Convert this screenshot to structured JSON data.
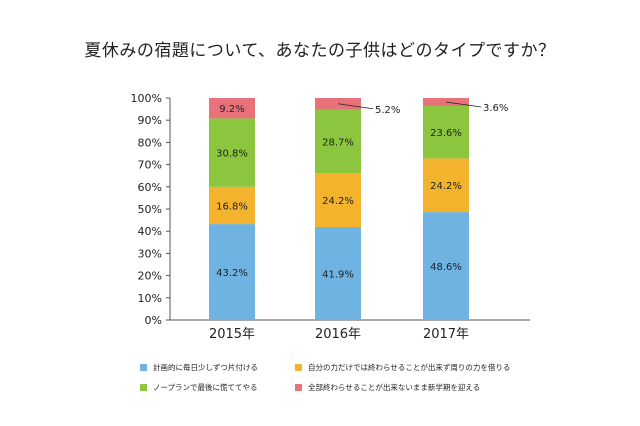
{
  "chart_data": {
    "type": "bar",
    "stacked": true,
    "title": "夏休みの宿題について、あなたの子供はどのタイプですか？",
    "categories": [
      "2015年",
      "2016年",
      "2017年"
    ],
    "ylim": [
      0,
      100
    ],
    "yticks": [
      "0%",
      "10%",
      "20%",
      "30%",
      "40%",
      "50%",
      "60%",
      "70%",
      "80%",
      "90%",
      "100%"
    ],
    "grid": false,
    "legend_position": "bottom",
    "series": [
      {
        "name": "計画的に毎日少しずつ片付ける",
        "color": "#6fb3e2",
        "values": [
          43.2,
          41.9,
          48.6
        ],
        "labels": [
          "43.2%",
          "41.9%",
          "48.6%"
        ]
      },
      {
        "name": "自分の力だけでは終わらせることが出来ず周りの力を借りる",
        "color": "#f4b32c",
        "values": [
          16.8,
          24.2,
          24.2
        ],
        "labels": [
          "16.8%",
          "24.2%",
          "24.2%"
        ]
      },
      {
        "name": "ノープランで最後に慌ててやる",
        "color": "#8cc63e",
        "values": [
          30.8,
          28.7,
          23.6
        ],
        "labels": [
          "30.8%",
          "28.7%",
          "23.6%"
        ]
      },
      {
        "name": "全部終わらせることが出来ないまま新学期を迎える",
        "color": "#e8727a",
        "values": [
          9.2,
          5.2,
          3.6
        ],
        "labels": [
          "9.2%",
          "5.2%",
          "3.6%"
        ]
      }
    ]
  }
}
